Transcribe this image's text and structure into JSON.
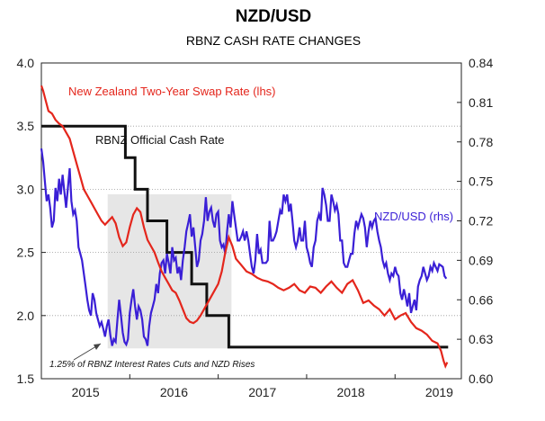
{
  "colors": {
    "swap": "#e4261c",
    "ocr": "#111111",
    "nzdusd": "#3a1fd6",
    "shade": "#e6e6e6",
    "grid": "#9a9a9a"
  },
  "chart_data": {
    "type": "line",
    "title": "NZD/USD",
    "subtitle": "RBNZ CASH RATE CHANGES",
    "x_ticks": [
      "2015",
      "2016",
      "2017",
      "2018",
      "2019"
    ],
    "x_range": [
      2014.5,
      2019.25
    ],
    "left_axis": {
      "ylim": [
        1.5,
        4.0
      ],
      "ticks": [
        "1.5",
        "2.0",
        "2.5",
        "3.0",
        "3.5",
        "4.0"
      ]
    },
    "right_axis": {
      "ylim": [
        0.6,
        0.84
      ],
      "ticks": [
        "0.60",
        "0.63",
        "0.66",
        "0.69",
        "0.72",
        "0.75",
        "0.78",
        "0.81",
        "0.84"
      ]
    },
    "grid": {
      "horizontal": true,
      "vertical": false
    },
    "shaded_period": [
      2015.25,
      2016.65
    ],
    "series": [
      {
        "name": "New Zealand Two-Year Swap Rate (lhs)",
        "axis": "left",
        "x": [
          2014.5,
          2014.52,
          2014.55,
          2014.58,
          2014.62,
          2014.66,
          2014.7,
          2014.74,
          2014.78,
          2014.82,
          2014.86,
          2014.9,
          2014.94,
          2014.98,
          2015.02,
          2015.06,
          2015.1,
          2015.14,
          2015.18,
          2015.22,
          2015.26,
          2015.3,
          2015.34,
          2015.38,
          2015.42,
          2015.46,
          2015.5,
          2015.54,
          2015.58,
          2015.62,
          2015.66,
          2015.7,
          2015.74,
          2015.78,
          2015.82,
          2015.86,
          2015.9,
          2015.94,
          2015.98,
          2016.02,
          2016.06,
          2016.1,
          2016.14,
          2016.18,
          2016.22,
          2016.26,
          2016.3,
          2016.34,
          2016.38,
          2016.42,
          2016.46,
          2016.5,
          2016.54,
          2016.58,
          2016.62,
          2016.66,
          2016.7,
          2016.76,
          2016.82,
          2016.88,
          2016.94,
          2017.0,
          2017.06,
          2017.12,
          2017.18,
          2017.24,
          2017.3,
          2017.36,
          2017.42,
          2017.48,
          2017.54,
          2017.6,
          2017.66,
          2017.72,
          2017.78,
          2017.84,
          2017.9,
          2017.96,
          2018.02,
          2018.08,
          2018.14,
          2018.2,
          2018.26,
          2018.32,
          2018.38,
          2018.44,
          2018.5,
          2018.56,
          2018.62,
          2018.68,
          2018.74,
          2018.8,
          2018.86,
          2018.92,
          2018.98,
          2019.02,
          2019.05,
          2019.07,
          2019.09
        ],
        "values": [
          3.82,
          3.78,
          3.7,
          3.62,
          3.6,
          3.55,
          3.52,
          3.5,
          3.45,
          3.4,
          3.3,
          3.2,
          3.1,
          3.0,
          2.95,
          2.9,
          2.85,
          2.8,
          2.75,
          2.72,
          2.75,
          2.78,
          2.73,
          2.62,
          2.55,
          2.58,
          2.7,
          2.8,
          2.85,
          2.82,
          2.7,
          2.6,
          2.55,
          2.5,
          2.42,
          2.35,
          2.3,
          2.25,
          2.2,
          2.18,
          2.12,
          2.05,
          1.98,
          1.95,
          1.94,
          1.96,
          2.0,
          2.05,
          2.1,
          2.15,
          2.2,
          2.25,
          2.35,
          2.5,
          2.62,
          2.55,
          2.45,
          2.4,
          2.35,
          2.33,
          2.3,
          2.28,
          2.27,
          2.25,
          2.22,
          2.2,
          2.22,
          2.25,
          2.2,
          2.18,
          2.23,
          2.22,
          2.18,
          2.23,
          2.27,
          2.22,
          2.18,
          2.25,
          2.28,
          2.2,
          2.1,
          2.12,
          2.08,
          2.05,
          2.0,
          2.05,
          1.97,
          2.0,
          2.02,
          1.95,
          1.9,
          1.88,
          1.85,
          1.8,
          1.78,
          1.72,
          1.64,
          1.6,
          1.63
        ]
      },
      {
        "name": "RBNZ Official Cash Rate",
        "axis": "left",
        "step": true,
        "x": [
          2014.5,
          2015.45,
          2015.56,
          2015.7,
          2015.92,
          2016.2,
          2016.37,
          2016.62,
          2016.87,
          2017.2,
          2017.6,
          2018.0,
          2018.4,
          2018.8,
          2019.1
        ],
        "values": [
          3.5,
          3.25,
          3.0,
          2.75,
          2.5,
          2.25,
          2.0,
          1.75,
          1.75,
          1.75,
          1.75,
          1.75,
          1.75,
          1.75,
          1.75
        ]
      },
      {
        "name": "NZD/USD (rhs)",
        "axis": "right",
        "x": [
          2014.5,
          2014.52,
          2014.54,
          2014.56,
          2014.58,
          2014.6,
          2014.62,
          2014.64,
          2014.66,
          2014.68,
          2014.7,
          2014.72,
          2014.74,
          2014.76,
          2014.78,
          2014.8,
          2014.82,
          2014.84,
          2014.86,
          2014.88,
          2014.9,
          2014.92,
          2014.94,
          2014.96,
          2014.98,
          2015.0,
          2015.02,
          2015.04,
          2015.06,
          2015.08,
          2015.1,
          2015.12,
          2015.14,
          2015.16,
          2015.18,
          2015.2,
          2015.22,
          2015.24,
          2015.26,
          2015.28,
          2015.3,
          2015.32,
          2015.34,
          2015.36,
          2015.38,
          2015.4,
          2015.42,
          2015.44,
          2015.46,
          2015.48,
          2015.5,
          2015.52,
          2015.54,
          2015.56,
          2015.58,
          2015.6,
          2015.62,
          2015.64,
          2015.66,
          2015.68,
          2015.7,
          2015.72,
          2015.74,
          2015.76,
          2015.78,
          2015.8,
          2015.82,
          2015.84,
          2015.86,
          2015.88,
          2015.9,
          2015.92,
          2015.94,
          2015.96,
          2015.98,
          2016.0,
          2016.02,
          2016.04,
          2016.06,
          2016.08,
          2016.1,
          2016.12,
          2016.14,
          2016.16,
          2016.18,
          2016.2,
          2016.22,
          2016.24,
          2016.26,
          2016.28,
          2016.3,
          2016.32,
          2016.34,
          2016.36,
          2016.38,
          2016.4,
          2016.42,
          2016.44,
          2016.46,
          2016.48,
          2016.5,
          2016.52,
          2016.54,
          2016.56,
          2016.58,
          2016.6,
          2016.62,
          2016.64,
          2016.66,
          2016.68,
          2016.7,
          2016.72,
          2016.74,
          2016.76,
          2016.78,
          2016.8,
          2016.82,
          2016.84,
          2016.86,
          2016.88,
          2016.9,
          2016.92,
          2016.94,
          2016.96,
          2016.98,
          2017.0,
          2017.02,
          2017.04,
          2017.06,
          2017.08,
          2017.1,
          2017.12,
          2017.14,
          2017.16,
          2017.18,
          2017.2,
          2017.22,
          2017.24,
          2017.26,
          2017.28,
          2017.3,
          2017.32,
          2017.34,
          2017.36,
          2017.38,
          2017.4,
          2017.42,
          2017.44,
          2017.46,
          2017.48,
          2017.5,
          2017.52,
          2017.54,
          2017.56,
          2017.58,
          2017.6,
          2017.62,
          2017.64,
          2017.66,
          2017.68,
          2017.7,
          2017.72,
          2017.74,
          2017.76,
          2017.78,
          2017.8,
          2017.82,
          2017.84,
          2017.86,
          2017.88,
          2017.9,
          2017.92,
          2017.94,
          2017.96,
          2017.98,
          2018.0,
          2018.02,
          2018.04,
          2018.06,
          2018.08,
          2018.1,
          2018.12,
          2018.14,
          2018.16,
          2018.18,
          2018.2,
          2018.22,
          2018.24,
          2018.26,
          2018.28,
          2018.3,
          2018.32,
          2018.34,
          2018.36,
          2018.38,
          2018.4,
          2018.42,
          2018.44,
          2018.46,
          2018.48,
          2018.5,
          2018.52,
          2018.54,
          2018.56,
          2018.58,
          2018.6,
          2018.62,
          2018.64,
          2018.66,
          2018.68,
          2018.7,
          2018.72,
          2018.74,
          2018.76,
          2018.78,
          2018.8,
          2018.82,
          2018.84,
          2018.86,
          2018.88,
          2018.9,
          2018.92,
          2018.94,
          2018.96,
          2018.98,
          2019.0,
          2019.02,
          2019.04,
          2019.06,
          2019.08
        ],
        "values": [
          0.775,
          0.765,
          0.75,
          0.735,
          0.74,
          0.73,
          0.715,
          0.72,
          0.745,
          0.735,
          0.752,
          0.74,
          0.755,
          0.742,
          0.73,
          0.745,
          0.76,
          0.735,
          0.725,
          0.728,
          0.72,
          0.7,
          0.695,
          0.69,
          0.68,
          0.67,
          0.66,
          0.652,
          0.648,
          0.665,
          0.66,
          0.65,
          0.645,
          0.64,
          0.643,
          0.638,
          0.632,
          0.64,
          0.645,
          0.633,
          0.625,
          0.63,
          0.628,
          0.645,
          0.66,
          0.648,
          0.635,
          0.628,
          0.626,
          0.63,
          0.65,
          0.66,
          0.668,
          0.655,
          0.645,
          0.655,
          0.652,
          0.645,
          0.632,
          0.63,
          0.625,
          0.64,
          0.65,
          0.655,
          0.66,
          0.672,
          0.665,
          0.68,
          0.688,
          0.69,
          0.68,
          0.695,
          0.688,
          0.68,
          0.7,
          0.69,
          0.692,
          0.68,
          0.685,
          0.675,
          0.69,
          0.7,
          0.712,
          0.718,
          0.725,
          0.708,
          0.715,
          0.7,
          0.685,
          0.69,
          0.705,
          0.71,
          0.72,
          0.738,
          0.72,
          0.727,
          0.73,
          0.72,
          0.715,
          0.725,
          0.727,
          0.705,
          0.7,
          0.702,
          0.695,
          0.712,
          0.725,
          0.715,
          0.735,
          0.725,
          0.715,
          0.705,
          0.705,
          0.708,
          0.712,
          0.705,
          0.712,
          0.705,
          0.695,
          0.685,
          0.68,
          0.69,
          0.71,
          0.695,
          0.698,
          0.688,
          0.688,
          0.688,
          0.69,
          0.72,
          0.705,
          0.705,
          0.708,
          0.712,
          0.72,
          0.728,
          0.725,
          0.74,
          0.735,
          0.74,
          0.727,
          0.733,
          0.72,
          0.705,
          0.7,
          0.705,
          0.715,
          0.705,
          0.705,
          0.72,
          0.7,
          0.695,
          0.688,
          0.685,
          0.7,
          0.705,
          0.72,
          0.725,
          0.72,
          0.745,
          0.74,
          0.732,
          0.72,
          0.72,
          0.74,
          0.735,
          0.728,
          0.732,
          0.725,
          0.705,
          0.705,
          0.688,
          0.685,
          0.685,
          0.69,
          0.695,
          0.695,
          0.71,
          0.72,
          0.715,
          0.72,
          0.725,
          0.722,
          0.715,
          0.7,
          0.712,
          0.72,
          0.715,
          0.72,
          0.722,
          0.712,
          0.705,
          0.7,
          0.69,
          0.685,
          0.688,
          0.68,
          0.675,
          0.68,
          0.678,
          0.685,
          0.68,
          0.678,
          0.665,
          0.66,
          0.668,
          0.662,
          0.655,
          0.665,
          0.65,
          0.655,
          0.66,
          0.652,
          0.67,
          0.675,
          0.678,
          0.685,
          0.68,
          0.675,
          0.678,
          0.685,
          0.682,
          0.688,
          0.685,
          0.682,
          0.687,
          0.686,
          0.685,
          0.678,
          0.676
        ]
      }
    ],
    "annotations": {
      "swap_label": "New Zealand Two-Year Swap Rate (lhs)",
      "ocr_label": "RBNZ Official Cash Rate",
      "nzd_label": "NZD/USD (rhs)",
      "note": "1.25% of RBNZ Interest Rates Cuts and NZD Rises"
    }
  }
}
